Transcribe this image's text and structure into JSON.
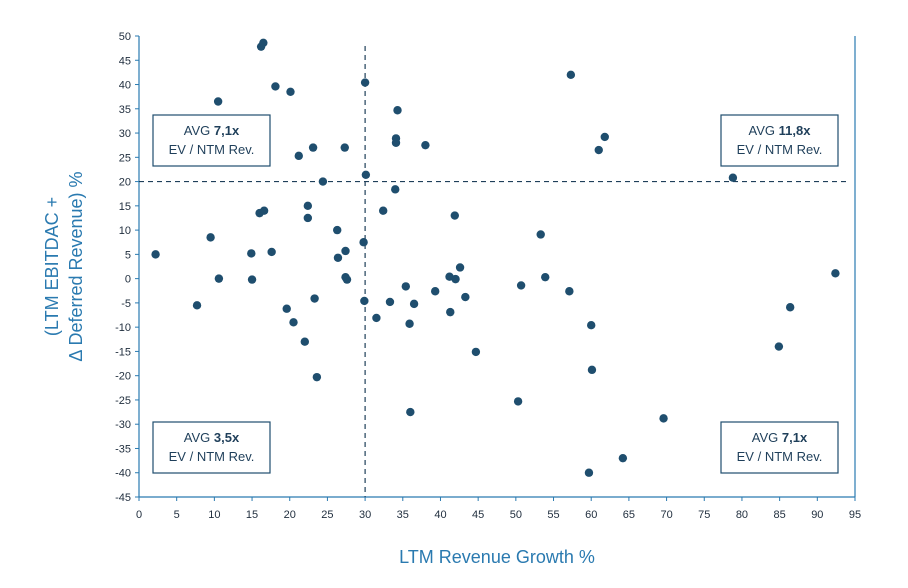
{
  "chart_data": {
    "type": "scatter",
    "xlabel": "LTM Revenue Growth %",
    "ylabel_lines": [
      "(LTM EBITDAC +",
      "Δ Deferred Revenue) %"
    ],
    "xlim": [
      0,
      95
    ],
    "ylim": [
      -45,
      50
    ],
    "x_ticks": [
      0,
      5,
      10,
      15,
      20,
      25,
      30,
      35,
      40,
      45,
      50,
      55,
      60,
      65,
      70,
      75,
      80,
      85,
      90,
      95
    ],
    "y_ticks": [
      50,
      45,
      40,
      35,
      30,
      25,
      20,
      15,
      10,
      5,
      0,
      -5,
      -10,
      -15,
      -20,
      -25,
      -30,
      -35,
      -40,
      -45
    ],
    "reference_lines": {
      "x": 30,
      "y": 20
    },
    "grid": false,
    "colors": {
      "marker": "#1f4e6e",
      "axis": "#2a7ab0",
      "text": "#1f2d3d",
      "label": "#2a7ab0",
      "box_border": "#1f4e6e"
    },
    "quadrant_labels": [
      {
        "position": "top-left",
        "prefix": "AVG ",
        "value": "7,1x",
        "line2": "EV / NTM Rev."
      },
      {
        "position": "top-right",
        "prefix": "AVG ",
        "value": "11,8x",
        "line2": "EV / NTM Rev."
      },
      {
        "position": "bottom-left",
        "prefix": "AVG ",
        "value": "3,5x",
        "line2": "EV / NTM Rev."
      },
      {
        "position": "bottom-right",
        "prefix": "AVG ",
        "value": "7,1x",
        "line2": "EV / NTM Rev."
      }
    ],
    "points": [
      [
        2.2,
        5.0
      ],
      [
        7.7,
        -5.5
      ],
      [
        9.5,
        8.5
      ],
      [
        10.5,
        36.5
      ],
      [
        10.6,
        0.0
      ],
      [
        14.9,
        5.2
      ],
      [
        15.0,
        -0.2
      ],
      [
        16.0,
        13.5
      ],
      [
        16.2,
        47.8
      ],
      [
        16.5,
        48.6
      ],
      [
        16.6,
        14.0
      ],
      [
        17.6,
        5.5
      ],
      [
        18.1,
        39.6
      ],
      [
        19.6,
        -6.2
      ],
      [
        20.1,
        38.5
      ],
      [
        20.5,
        -9.0
      ],
      [
        21.2,
        25.3
      ],
      [
        22.0,
        -13.0
      ],
      [
        22.4,
        15.0
      ],
      [
        22.4,
        12.5
      ],
      [
        23.1,
        27.0
      ],
      [
        23.3,
        -4.1
      ],
      [
        23.6,
        -20.3
      ],
      [
        24.4,
        20.0
      ],
      [
        26.3,
        10.0
      ],
      [
        26.4,
        4.3
      ],
      [
        27.3,
        27.0
      ],
      [
        27.4,
        5.7
      ],
      [
        27.4,
        0.3
      ],
      [
        27.6,
        -0.2
      ],
      [
        29.8,
        7.5
      ],
      [
        29.9,
        -4.6
      ],
      [
        30.0,
        40.4
      ],
      [
        30.1,
        21.4
      ],
      [
        31.5,
        -8.1
      ],
      [
        32.4,
        14.0
      ],
      [
        33.3,
        -4.8
      ],
      [
        34.0,
        18.4
      ],
      [
        34.1,
        28.9
      ],
      [
        34.1,
        28.0
      ],
      [
        34.3,
        34.7
      ],
      [
        35.4,
        -1.6
      ],
      [
        35.9,
        -9.3
      ],
      [
        36.0,
        -27.5
      ],
      [
        36.5,
        -5.2
      ],
      [
        38.0,
        27.5
      ],
      [
        39.3,
        -2.6
      ],
      [
        41.2,
        0.4
      ],
      [
        41.3,
        -6.9
      ],
      [
        41.9,
        13.0
      ],
      [
        42.0,
        -0.1
      ],
      [
        42.6,
        2.3
      ],
      [
        43.3,
        -3.8
      ],
      [
        44.7,
        -15.1
      ],
      [
        50.3,
        -25.3
      ],
      [
        50.7,
        -1.4
      ],
      [
        53.3,
        9.1
      ],
      [
        53.9,
        0.3
      ],
      [
        57.1,
        -2.6
      ],
      [
        57.3,
        42.0
      ],
      [
        59.7,
        -40.0
      ],
      [
        60.0,
        -9.6
      ],
      [
        60.1,
        -18.8
      ],
      [
        61.0,
        26.5
      ],
      [
        61.8,
        29.2
      ],
      [
        64.2,
        -37.0
      ],
      [
        69.6,
        -28.8
      ],
      [
        78.8,
        20.8
      ],
      [
        84.9,
        -14.0
      ],
      [
        86.4,
        -5.9
      ],
      [
        92.4,
        1.1
      ]
    ]
  }
}
